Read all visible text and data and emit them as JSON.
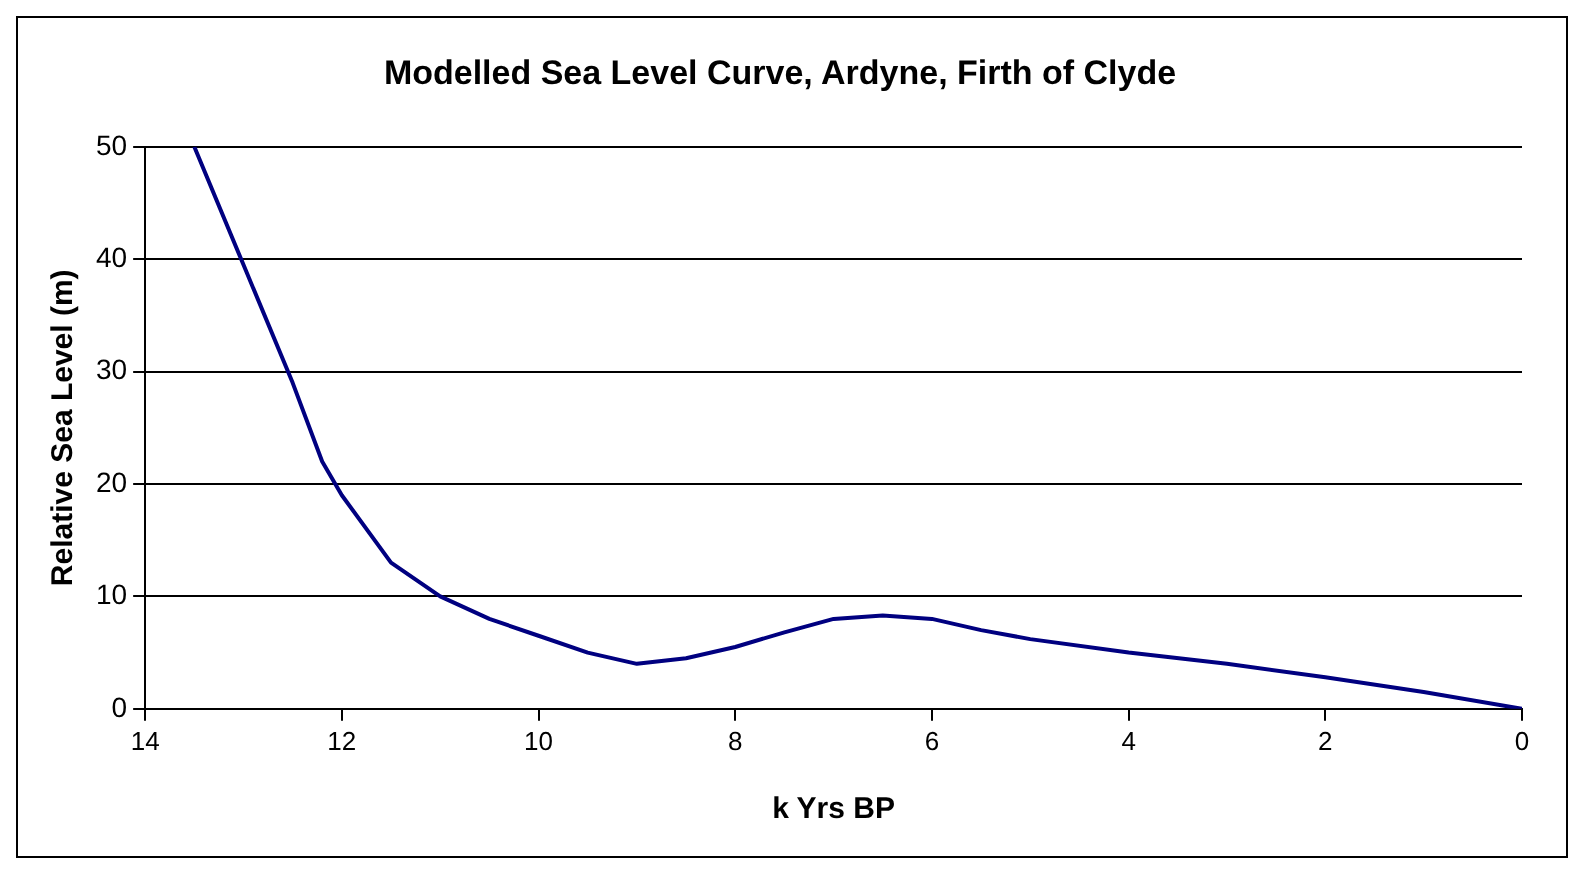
{
  "chart_data": {
    "type": "line",
    "title": "Modelled Sea Level Curve, Ardyne, Firth of Clyde",
    "xlabel": "k Yrs BP",
    "ylabel": "Relative Sea Level (m)",
    "x": [
      13.5,
      13,
      12.5,
      12.2,
      12,
      11.5,
      11,
      10.5,
      10,
      9.5,
      9,
      8.5,
      8,
      7.5,
      7,
      6.5,
      6,
      5.5,
      5,
      4,
      3,
      2,
      1,
      0
    ],
    "series": [
      {
        "color": "#000080",
        "values": [
          50,
          39.5,
          29,
          22,
          19,
          13,
          10,
          8,
          6.5,
          5,
          4,
          4.5,
          5.5,
          6.8,
          8,
          8.3,
          8,
          7,
          6.2,
          5,
          4,
          2.8,
          1.5,
          0
        ]
      }
    ],
    "xlim": [
      14,
      0
    ],
    "xticks": [
      14,
      12,
      10,
      8,
      6,
      4,
      2,
      0
    ],
    "ylim": [
      0,
      50
    ],
    "yticks": [
      0,
      10,
      20,
      30,
      40,
      50
    ],
    "grid": "y",
    "legend": false,
    "marker": "none",
    "line_style": "solid"
  }
}
